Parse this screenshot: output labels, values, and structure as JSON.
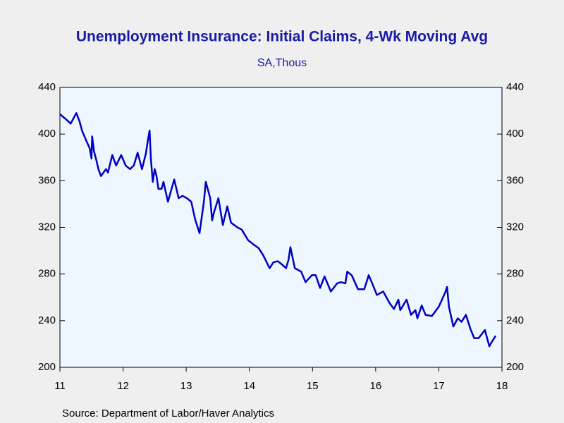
{
  "chart_data": {
    "type": "line",
    "title": "Unemployment Insurance: Initial Claims, 4-Wk Moving Avg",
    "subtitle": "SA,Thous",
    "source": "Source:  Department of Labor/Haver Analytics",
    "xlim": [
      2011,
      2018
    ],
    "xticks": [
      {
        "value": 2011,
        "label": "11"
      },
      {
        "value": 2012,
        "label": "12"
      },
      {
        "value": 2013,
        "label": "13"
      },
      {
        "value": 2014,
        "label": "14"
      },
      {
        "value": 2015,
        "label": "15"
      },
      {
        "value": 2016,
        "label": "16"
      },
      {
        "value": 2017,
        "label": "17"
      },
      {
        "value": 2018,
        "label": "18"
      }
    ],
    "ylim": [
      200,
      440
    ],
    "yticks": [
      200,
      240,
      280,
      320,
      360,
      400,
      440
    ],
    "y2lim": [
      200,
      440
    ],
    "y2ticks": [
      200,
      240,
      280,
      320,
      360,
      400,
      440
    ],
    "x": [
      2011.0,
      2011.11,
      2011.17,
      2011.26,
      2011.31,
      2011.35,
      2011.42,
      2011.47,
      2011.5,
      2011.51,
      2011.54,
      2011.57,
      2011.61,
      2011.65,
      2011.73,
      2011.76,
      2011.83,
      2011.89,
      2011.97,
      2012.04,
      2012.11,
      2012.17,
      2012.23,
      2012.3,
      2012.36,
      2012.4,
      2012.42,
      2012.44,
      2012.47,
      2012.5,
      2012.53,
      2012.56,
      2012.61,
      2012.64,
      2012.71,
      2012.81,
      2012.88,
      2012.94,
      2013.01,
      2013.08,
      2013.14,
      2013.21,
      2013.28,
      2013.31,
      2013.38,
      2013.41,
      2013.44,
      2013.51,
      2013.58,
      2013.65,
      2013.71,
      2013.81,
      2013.88,
      2013.98,
      2014.05,
      2014.15,
      2014.22,
      2014.32,
      2014.38,
      2014.45,
      2014.52,
      2014.58,
      2014.62,
      2014.65,
      2014.72,
      2014.82,
      2014.89,
      2014.99,
      2015.05,
      2015.12,
      2015.19,
      2015.29,
      2015.39,
      2015.45,
      2015.52,
      2015.55,
      2015.62,
      2015.72,
      2015.82,
      2015.89,
      2015.96,
      2016.02,
      2016.12,
      2016.22,
      2016.29,
      2016.36,
      2016.39,
      2016.49,
      2016.56,
      2016.63,
      2016.66,
      2016.73,
      2016.79,
      2016.89,
      2017.0,
      2017.1,
      2017.13,
      2017.16,
      2017.23,
      2017.3,
      2017.36,
      2017.43,
      2017.5,
      2017.56,
      2017.63,
      2017.73,
      2017.8,
      2017.83,
      2017.9
    ],
    "series": [
      {
        "name": "Initial Claims, 4-Wk Moving Avg",
        "color": "#0000c0",
        "values": [
          417,
          412,
          409,
          418,
          411,
          403,
          394,
          388,
          379,
          398,
          385,
          379,
          370,
          364,
          370,
          367,
          382,
          373,
          382,
          373,
          370,
          373,
          384,
          370,
          383,
          397,
          403,
          379,
          359,
          370,
          364,
          353,
          353,
          359,
          342,
          361,
          345,
          347,
          345,
          342,
          327,
          315,
          342,
          359,
          345,
          326,
          333,
          345,
          322,
          338,
          324,
          320,
          318,
          309,
          306,
          302,
          296,
          285,
          290,
          291,
          288,
          285,
          292,
          303,
          285,
          282,
          273,
          279,
          279,
          268,
          278,
          265,
          272,
          273,
          272,
          282,
          279,
          267,
          267,
          279,
          270,
          262,
          265,
          255,
          250,
          258,
          249,
          258,
          245,
          249,
          242,
          253,
          245,
          244,
          252,
          264,
          269,
          252,
          235,
          242,
          239,
          245,
          233,
          225,
          225,
          232,
          218,
          221,
          227
        ]
      }
    ]
  }
}
